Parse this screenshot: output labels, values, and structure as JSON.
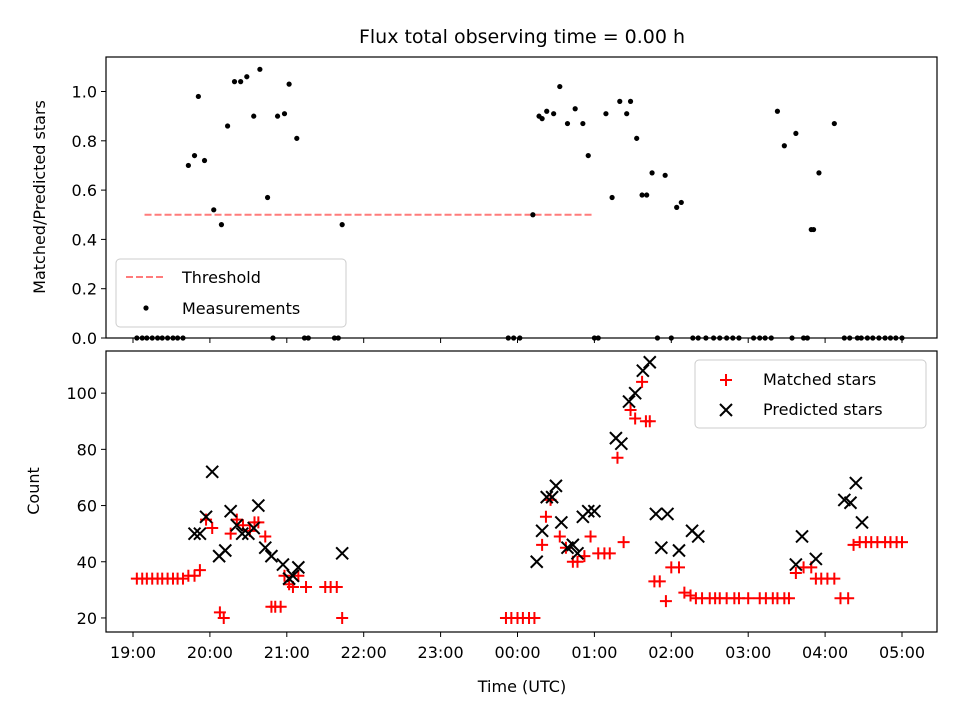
{
  "chart_data": [
    {
      "type": "scatter",
      "title": "Flux total observing time = 0.00 h",
      "ylabel": "Matched/Predicted stars",
      "xlabel": "",
      "ylim": [
        0,
        1.14
      ],
      "yticks": [
        "0.0",
        "0.2",
        "0.4",
        "0.6",
        "0.8",
        "1.0"
      ],
      "legend_position": "lower-left",
      "series": [
        {
          "name": "Threshold",
          "style": "dashed-line",
          "color": "#ff7b7b",
          "x": [
            19.15,
            25.0
          ],
          "y": [
            0.5,
            0.5
          ]
        },
        {
          "name": "Measurements",
          "style": "dot",
          "color": "#000000",
          "x": [
            19.05,
            19.12,
            19.18,
            19.25,
            19.32,
            19.38,
            19.45,
            19.52,
            19.58,
            19.65,
            19.72,
            19.8,
            19.85,
            19.93,
            20.05,
            20.15,
            20.23,
            20.32,
            20.4,
            20.48,
            20.57,
            20.65,
            20.75,
            20.82,
            20.88,
            20.97,
            21.03,
            21.13,
            21.23,
            21.28,
            21.62,
            21.67,
            21.72,
            23.88,
            23.95,
            24.03,
            24.2,
            24.28,
            24.32,
            24.38,
            24.47,
            24.55,
            24.65,
            24.75,
            24.85,
            24.92,
            25.0,
            25.05,
            25.15,
            25.23,
            25.33,
            25.42,
            25.47,
            25.55,
            25.62,
            25.68,
            25.75,
            25.82,
            25.92,
            26.0,
            26.07,
            26.13,
            26.28,
            26.35,
            26.45,
            26.55,
            26.63,
            26.72,
            26.8,
            26.88,
            27.07,
            27.15,
            27.22,
            27.3,
            27.38,
            27.47,
            27.57,
            27.62,
            27.72,
            27.77,
            27.82,
            27.85,
            27.92,
            28.12,
            28.25,
            28.32,
            28.42,
            28.47,
            28.55,
            28.62,
            28.7,
            28.78,
            28.85,
            28.92,
            29.0
          ],
          "y": [
            0,
            0,
            0,
            0,
            0,
            0,
            0,
            0,
            0,
            0,
            0.7,
            0.74,
            0.98,
            0.72,
            0.52,
            0.46,
            0.86,
            1.04,
            1.04,
            1.06,
            0.9,
            1.09,
            0.57,
            0,
            0.9,
            0.91,
            1.03,
            0.81,
            0,
            0,
            0,
            0,
            0.46,
            0,
            0,
            0,
            0.5,
            0.9,
            0.89,
            0.92,
            0.91,
            1.02,
            0.87,
            0.93,
            0.87,
            0.74,
            0,
            0,
            0.91,
            0.57,
            0.96,
            0.91,
            0.96,
            0.81,
            0.58,
            0.58,
            0.67,
            0,
            0.66,
            0,
            0.53,
            0.55,
            0,
            0,
            0,
            0,
            0,
            0,
            0,
            0,
            0,
            0,
            0,
            0,
            0.92,
            0.78,
            0,
            0.83,
            0,
            0,
            0.44,
            0.44,
            0.67,
            0.87,
            0,
            0,
            0,
            0,
            0,
            0,
            0,
            0,
            0,
            0,
            0
          ]
        }
      ]
    },
    {
      "type": "scatter",
      "title": "",
      "ylabel": "Count",
      "xlabel": "Time (UTC)",
      "ylim": [
        15,
        115
      ],
      "yticks": [
        "20",
        "40",
        "60",
        "80",
        "100"
      ],
      "xticks": [
        "19:00",
        "20:00",
        "21:00",
        "22:00",
        "23:00",
        "00:00",
        "01:00",
        "02:00",
        "03:00",
        "04:00",
        "05:00"
      ],
      "legend_position": "upper-right",
      "series": [
        {
          "name": "Matched stars",
          "marker": "plus",
          "color": "#ff0000",
          "x": [
            19.05,
            19.12,
            19.18,
            19.25,
            19.32,
            19.38,
            19.45,
            19.52,
            19.58,
            19.65,
            19.72,
            19.8,
            19.87,
            19.95,
            20.03,
            20.13,
            20.18,
            20.27,
            20.35,
            20.43,
            20.52,
            20.58,
            20.63,
            20.72,
            20.8,
            20.85,
            20.92,
            20.97,
            21.03,
            21.08,
            21.15,
            21.25,
            21.5,
            21.57,
            21.65,
            21.72,
            23.85,
            23.92,
            24.0,
            24.07,
            24.15,
            24.22,
            24.32,
            24.37,
            24.43,
            24.55,
            24.63,
            24.72,
            24.78,
            24.87,
            24.95,
            25.05,
            25.13,
            25.2,
            25.3,
            25.38,
            25.47,
            25.53,
            25.62,
            25.67,
            25.72,
            25.78,
            25.85,
            25.93,
            26.0,
            26.1,
            26.17,
            26.25,
            26.32,
            26.4,
            26.5,
            26.57,
            26.63,
            26.72,
            26.82,
            26.88,
            27.0,
            27.15,
            27.23,
            27.32,
            27.38,
            27.47,
            27.53,
            27.62,
            27.72,
            27.82,
            27.88,
            27.95,
            28.03,
            28.12,
            28.2,
            28.3,
            28.37,
            28.45,
            28.53,
            28.6,
            28.68,
            28.78,
            28.85,
            28.93,
            29.0
          ],
          "y": [
            34,
            34,
            34,
            34,
            34,
            34,
            34,
            34,
            34,
            34,
            35,
            35,
            37,
            55,
            52,
            22,
            20,
            50,
            55,
            53,
            51,
            54,
            54,
            49,
            24,
            24,
            24,
            35,
            32,
            31,
            35,
            31,
            31,
            31,
            31,
            20,
            20,
            20,
            20,
            20,
            20,
            20,
            46,
            56,
            62,
            49,
            45,
            40,
            40,
            42,
            49,
            43,
            43,
            43,
            77,
            47,
            94,
            91,
            104,
            90,
            90,
            33,
            33,
            26,
            38,
            38,
            29,
            28,
            27,
            27,
            27,
            27,
            27,
            27,
            27,
            27,
            27,
            27,
            27,
            27,
            27,
            27,
            27,
            36,
            38,
            38,
            34,
            34,
            34,
            34,
            27,
            27,
            46,
            47,
            47,
            47,
            47,
            47,
            47,
            47,
            47
          ]
        },
        {
          "name": "Predicted stars",
          "marker": "x",
          "color": "#000000",
          "x": [
            19.8,
            19.87,
            19.95,
            20.03,
            20.12,
            20.2,
            20.27,
            20.35,
            20.42,
            20.5,
            20.57,
            20.63,
            20.72,
            20.8,
            20.95,
            21.03,
            21.08,
            21.15,
            21.72,
            24.25,
            24.32,
            24.38,
            24.45,
            24.5,
            24.57,
            24.65,
            24.72,
            24.78,
            24.85,
            24.92,
            25.0,
            25.28,
            25.35,
            25.45,
            25.53,
            25.63,
            25.72,
            25.8,
            25.87,
            25.95,
            26.1,
            26.27,
            26.35,
            27.62,
            27.7,
            27.88,
            28.25,
            28.33,
            28.4,
            28.48
          ],
          "y": [
            50,
            50,
            56,
            72,
            42,
            44,
            58,
            53,
            50,
            50,
            52,
            60,
            45,
            42,
            39,
            34,
            35,
            38,
            43,
            40,
            51,
            63,
            63,
            67,
            54,
            45,
            46,
            43,
            56,
            58,
            58,
            84,
            82,
            97,
            100,
            108,
            111,
            57,
            45,
            57,
            44,
            51,
            49,
            39,
            49,
            41,
            62,
            61,
            68,
            54
          ]
        }
      ]
    }
  ]
}
